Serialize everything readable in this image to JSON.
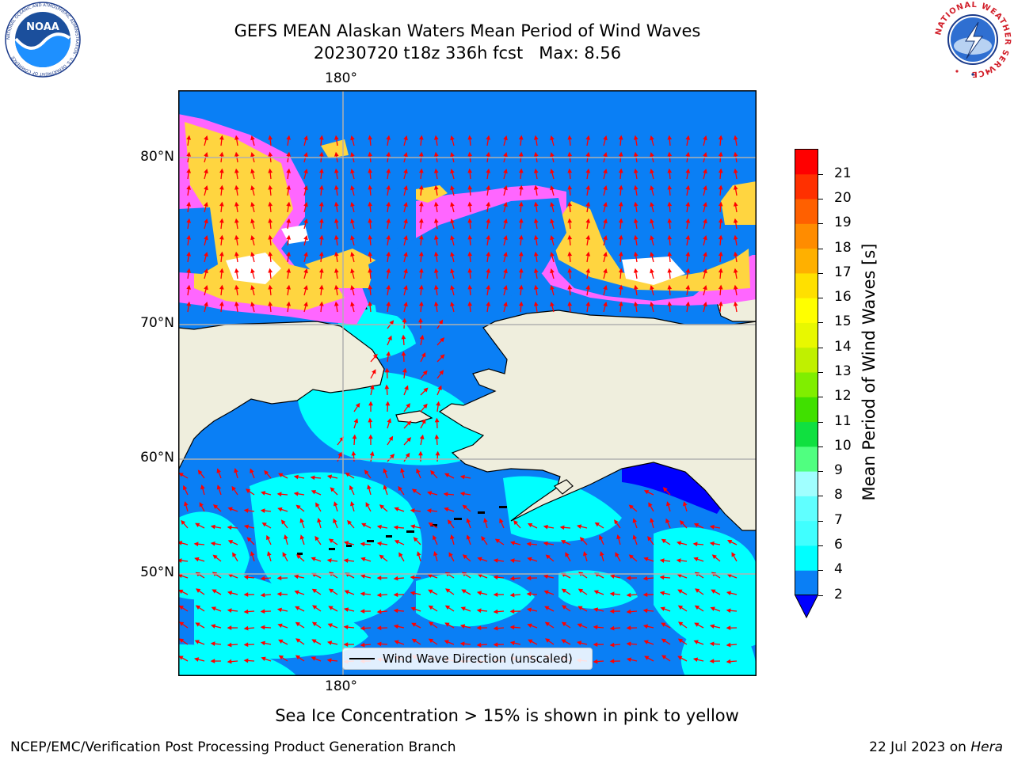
{
  "title": {
    "line1": "GEFS MEAN Alaskan Waters Mean Period of Wind Waves",
    "line2": "20230720 t18z 336h fcst   Max: 8.56"
  },
  "map": {
    "lon_label_top": "180°",
    "lon_label_bottom": "180°",
    "lat_labels": [
      "80°N",
      "70°N",
      "60°N",
      "50°N"
    ],
    "legend_text": "Wind Wave Direction (unscaled)",
    "colors": {
      "ocean_low": "#0a7ff5",
      "ocean_mid": "#00ffff",
      "ocean_dark": "#0000ff",
      "land": "#efeedd",
      "ice_pink": "#ff66ff",
      "ice_yellow": "#ffd540",
      "arrows": "#ff0000"
    }
  },
  "colorbar": {
    "label": "Mean Period of Wind Waves [s]",
    "ticks": [
      "2",
      "4",
      "6",
      "7",
      "8",
      "9",
      "10",
      "11",
      "12",
      "13",
      "14",
      "15",
      "16",
      "17",
      "18",
      "19",
      "20",
      "21"
    ],
    "colors": [
      "#0a7ff5",
      "#00ffff",
      "#40ffff",
      "#60ffff",
      "#a0ffff",
      "#50ff80",
      "#10e040",
      "#40e000",
      "#80ee00",
      "#c0f000",
      "#e8f800",
      "#ffff00",
      "#ffe000",
      "#ffb000",
      "#ff8c00",
      "#ff6000",
      "#ff3000",
      "#ff0000"
    ],
    "extend_color": "#0000ff"
  },
  "ice_note": "Sea Ice Concentration > 15% is shown in pink to yellow",
  "footer": {
    "left": "NCEP/EMC/Verification Post Processing Product Generation Branch",
    "right_date": "22 Jul 2023 on",
    "right_host": "Hera"
  },
  "logos": {
    "noaa_text": "NOAA",
    "noaa_ring": "NATIONAL OCEANIC AND ATMOSPHERIC ADMINISTRATION · U.S. DEPARTMENT OF COMMERCE",
    "nws_ring": "NATIONAL WEATHER SERVICE"
  }
}
